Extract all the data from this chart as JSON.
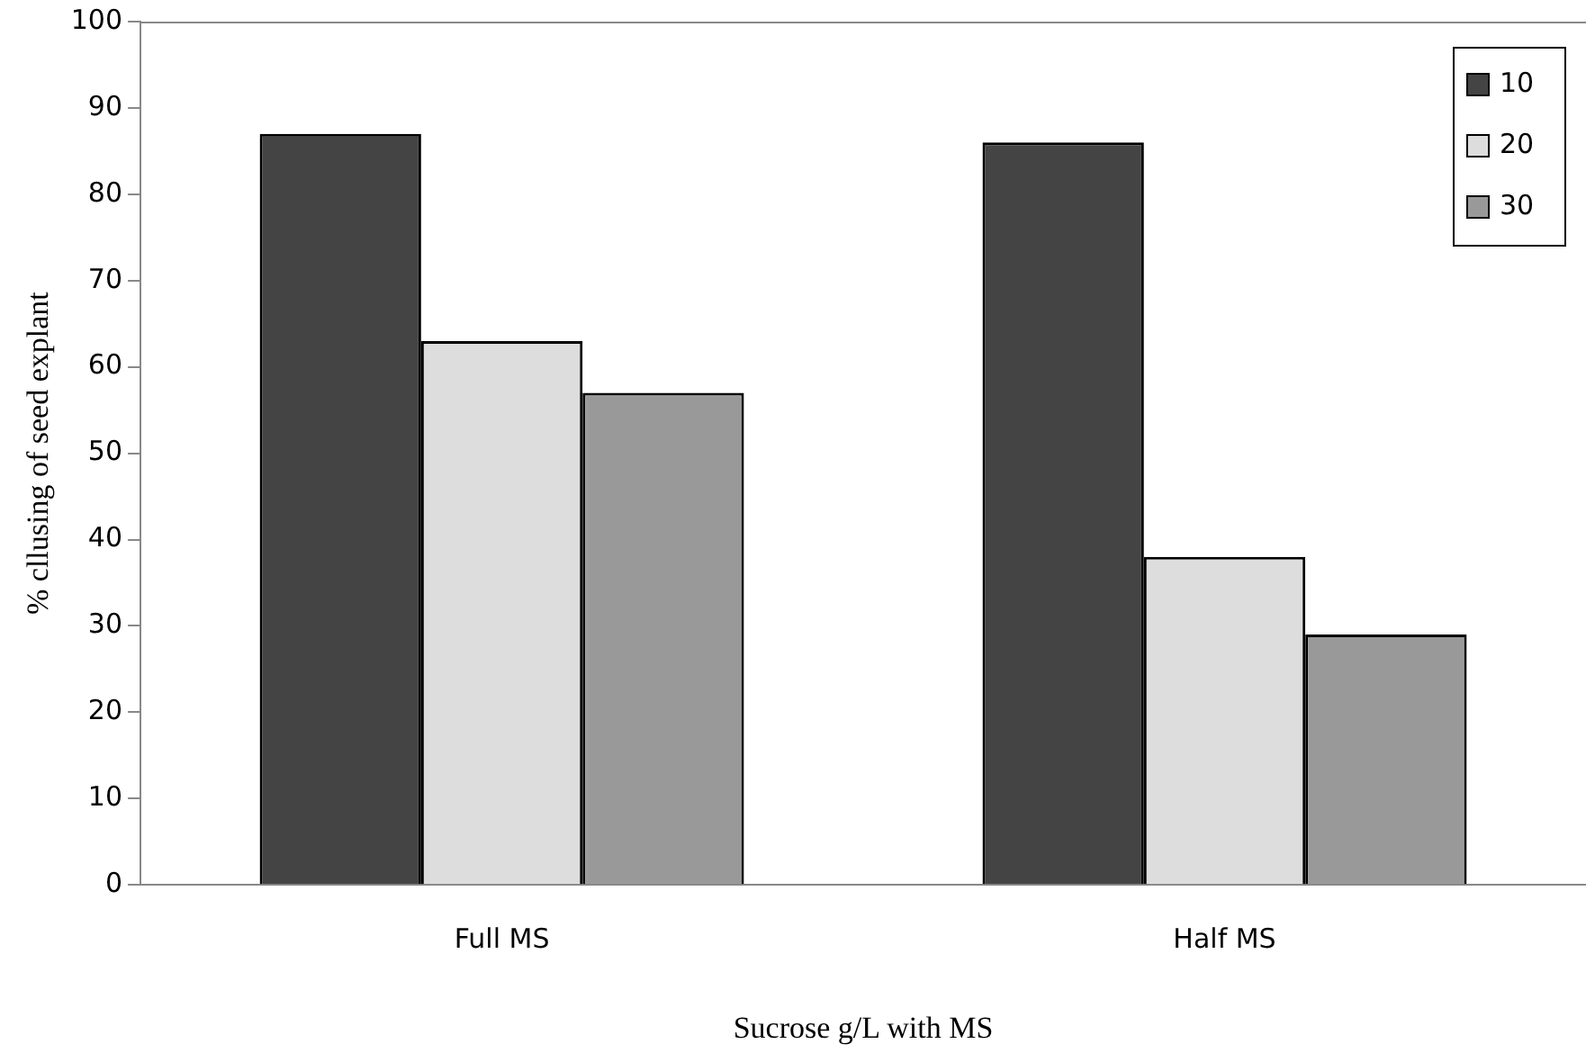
{
  "chart_data": {
    "type": "bar",
    "xlabel": "Sucrose g/L with MS",
    "ylabel": "% cllusing of seed explant",
    "categories": [
      "Full MS",
      "Half MS"
    ],
    "series": [
      {
        "name": "10",
        "color": "#444444",
        "values": [
          87,
          86
        ]
      },
      {
        "name": "20",
        "color": "#dddddd",
        "values": [
          63,
          38
        ]
      },
      {
        "name": "30",
        "color": "#999999",
        "values": [
          57,
          29
        ]
      }
    ],
    "ylim": [
      0,
      100
    ],
    "yticks": [
      0,
      10,
      20,
      30,
      40,
      50,
      60,
      70,
      80,
      90,
      100
    ],
    "grid": false,
    "legend": "top right"
  }
}
